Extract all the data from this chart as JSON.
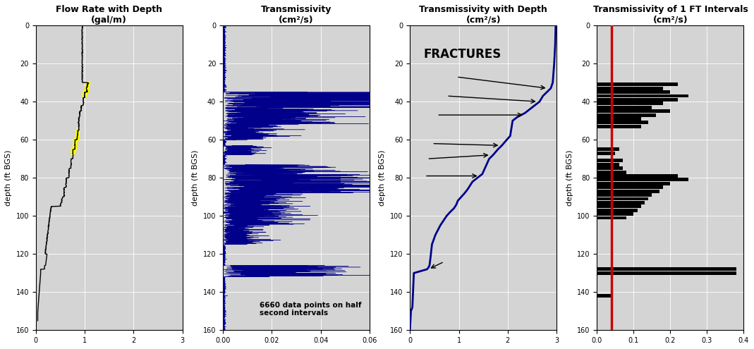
{
  "title1": "Flow Rate with Depth\n(gal/m)",
  "title2": "Transmissivity\n(cm²/s)",
  "title3": "Transmissivity with Depth\n(cm²/s)",
  "title4": "Transmissivity of 1 FT Intervals\n(cm²/s)",
  "ylabel": "depth (ft BGS)",
  "bg_color": "#d4d4d4",
  "flow_color": "#000000",
  "flow_highlight_color": "#ffff00",
  "trans_color": "#00008b",
  "trans3_color": "#00008b",
  "red_line_color": "#cc0000",
  "yticks": [
    0,
    20,
    40,
    60,
    80,
    100,
    120,
    140,
    160
  ],
  "depth_max": 160,
  "flow_xlim": [
    0,
    3
  ],
  "flow_xticks": [
    0,
    1,
    2,
    3
  ],
  "trans2_xlim": [
    0,
    0.06
  ],
  "trans2_xticks": [
    0,
    0.02,
    0.04,
    0.06
  ],
  "trans3_xlim": [
    0,
    3
  ],
  "trans3_xticks": [
    0,
    1,
    2,
    3
  ],
  "trans4_xlim": [
    0,
    0.4
  ],
  "trans4_xticks": [
    0,
    0.1,
    0.2,
    0.3,
    0.4
  ],
  "red_line_x": 0.04,
  "note_text": "6660 data points on half\nsecond intervals",
  "fractures_text": "FRACTURES"
}
